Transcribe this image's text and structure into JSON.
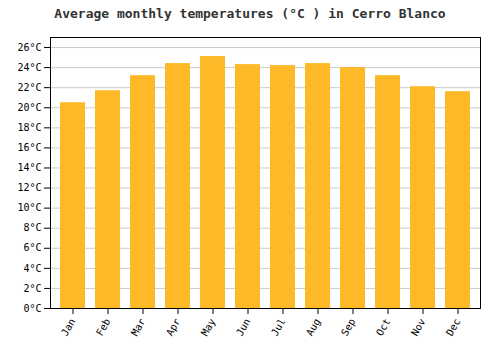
{
  "chart_data": {
    "type": "bar",
    "title": "Average monthly temperatures (°C ) in Cerro Blanco",
    "categories": [
      "Jan",
      "Feb",
      "Mar",
      "Apr",
      "May",
      "Jun",
      "Jul",
      "Aug",
      "Sep",
      "Oct",
      "Nov",
      "Dec"
    ],
    "values": [
      20.5,
      21.7,
      23.2,
      24.4,
      25.1,
      24.3,
      24.2,
      24.4,
      24.0,
      23.2,
      22.1,
      21.6
    ],
    "color": "#FDB927",
    "ylim": [
      0,
      27
    ],
    "yticks": [
      {
        "value": 0,
        "label": "0°C"
      },
      {
        "value": 2,
        "label": "2°C"
      },
      {
        "value": 4,
        "label": "4°C"
      },
      {
        "value": 6,
        "label": "6°C"
      },
      {
        "value": 8,
        "label": "8°C"
      },
      {
        "value": 10,
        "label": "10°C"
      },
      {
        "value": 12,
        "label": "12°C"
      },
      {
        "value": 14,
        "label": "14°C"
      },
      {
        "value": 16,
        "label": "16°C"
      },
      {
        "value": 18,
        "label": "18°C"
      },
      {
        "value": 20,
        "label": "20°C"
      },
      {
        "value": 22,
        "label": "22°C"
      },
      {
        "value": 24,
        "label": "24°C"
      },
      {
        "value": 26,
        "label": "26°C"
      }
    ],
    "grid": true
  }
}
